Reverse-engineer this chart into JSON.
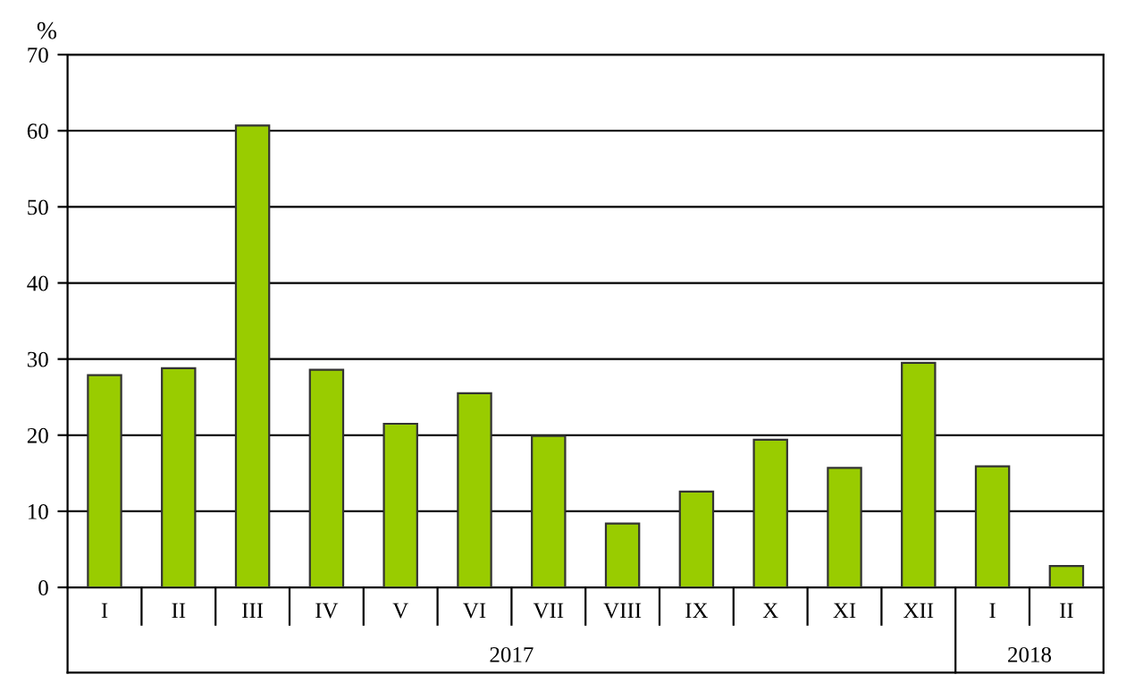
{
  "chart_data": {
    "type": "bar",
    "ylabel": "%",
    "categories": [
      "I",
      "II",
      "III",
      "IV",
      "V",
      "VI",
      "VII",
      "VIII",
      "IX",
      "X",
      "XI",
      "XII",
      "I",
      "II"
    ],
    "values": [
      27.9,
      28.8,
      60.7,
      28.6,
      21.5,
      25.5,
      19.9,
      8.4,
      12.6,
      19.4,
      15.7,
      29.5,
      15.9,
      2.8
    ],
    "color": "#99cc00",
    "ylim": [
      0,
      70
    ],
    "yticks": [
      0,
      10,
      20,
      30,
      40,
      50,
      60,
      70
    ],
    "grid": "y",
    "annotations": [
      "2017",
      "2018"
    ]
  }
}
